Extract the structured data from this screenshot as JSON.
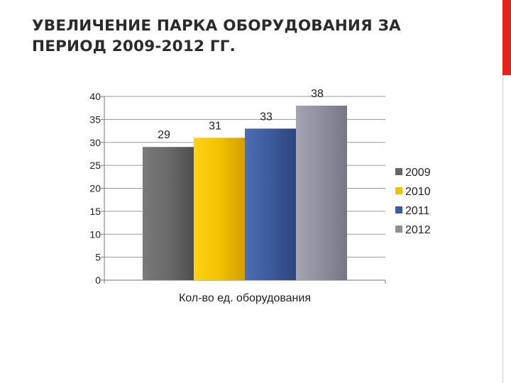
{
  "slide": {
    "title_line1": "УВЕЛИЧЕНИЕ ПАРКА ОБОРУДОВАНИЯ ЗА",
    "title_line2": "ПЕРИОД 2009-2012 ГГ.",
    "accent_color": "#e1251b"
  },
  "chart_data": {
    "type": "bar",
    "categories": [
      "Кол-во ед. оборудования"
    ],
    "series": [
      {
        "name": "2009",
        "values": [
          29
        ],
        "color": "#666666"
      },
      {
        "name": "2010",
        "values": [
          31
        ],
        "color": "#f2c200"
      },
      {
        "name": "2011",
        "values": [
          33
        ],
        "color": "#3d5a9c"
      },
      {
        "name": "2012",
        "values": [
          38
        ],
        "color": "#8e8e9c"
      }
    ],
    "y_ticks": [
      0,
      5,
      10,
      15,
      20,
      25,
      30,
      35,
      40
    ],
    "ylim": [
      0,
      40
    ],
    "data_labels": true,
    "grid": true,
    "legend_position": "right"
  }
}
